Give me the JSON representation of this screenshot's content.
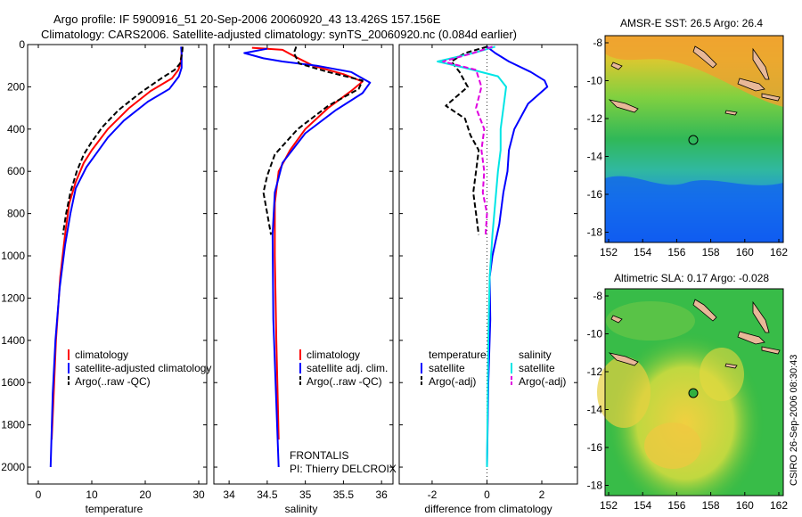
{
  "header": {
    "line1": "Argo profile: IF 5900916_51 20-Sep-2006 20060920_43 13.426S 157.156E",
    "line2": "Climatology: CARS2006. Satellite-adjusted climatology: synTS_20060920.nc (0.084d earlier)"
  },
  "colors": {
    "climatology": "#ff0000",
    "satellite": "#0000ff",
    "argo": "#000000",
    "sat_salinity": "#00e5e5",
    "argo_salinity": "#e000e0"
  },
  "chart_data": [
    {
      "type": "line",
      "id": "temperature",
      "xlabel": "temperature",
      "xlim": [
        -2,
        31.5
      ],
      "ylim": [
        0,
        2080
      ],
      "xticks": [
        0,
        10,
        20,
        30
      ],
      "yticks": [
        0,
        200,
        400,
        600,
        800,
        1000,
        1200,
        1400,
        1600,
        1800,
        2000
      ],
      "legend": [
        "climatology",
        "satellite-adjusted climatology",
        "Argo(..raw -QC)"
      ],
      "series": [
        {
          "name": "climatology",
          "color": "#ff0000",
          "points": [
            [
              26.8,
              10
            ],
            [
              26.8,
              40
            ],
            [
              26.6,
              90
            ],
            [
              26.2,
              120
            ],
            [
              25,
              160
            ],
            [
              21,
              220
            ],
            [
              17,
              300
            ],
            [
              13,
              400
            ],
            [
              10,
              500
            ],
            [
              8.5,
              560
            ],
            [
              7,
              650
            ],
            [
              5.8,
              750
            ],
            [
              5,
              900
            ],
            [
              4.1,
              1100
            ],
            [
              3.3,
              1400
            ],
            [
              2.8,
              1700
            ],
            [
              2.5,
              1870
            ]
          ]
        },
        {
          "name": "satellite-adjusted climatology",
          "color": "#0000ff",
          "points": [
            [
              26.7,
              10
            ],
            [
              26.8,
              40
            ],
            [
              26.8,
              110
            ],
            [
              26.3,
              150
            ],
            [
              24.5,
              210
            ],
            [
              20.5,
              270
            ],
            [
              16,
              360
            ],
            [
              13,
              440
            ],
            [
              11,
              510
            ],
            [
              9,
              580
            ],
            [
              7,
              680
            ],
            [
              6,
              800
            ],
            [
              5,
              950
            ],
            [
              4,
              1150
            ],
            [
              3.2,
              1400
            ],
            [
              2.7,
              1650
            ],
            [
              2.3,
              2000
            ]
          ]
        },
        {
          "name": "Argo(..raw -QC)",
          "color": "#000000",
          "dash": true,
          "points": [
            [
              27,
              10
            ],
            [
              26.9,
              40
            ],
            [
              26.5,
              90
            ],
            [
              25.5,
              120
            ],
            [
              23,
              160
            ],
            [
              19,
              230
            ],
            [
              15,
              310
            ],
            [
              12,
              390
            ],
            [
              10,
              460
            ],
            [
              8.5,
              520
            ],
            [
              7.2,
              600
            ],
            [
              6,
              700
            ],
            [
              5.2,
              800
            ],
            [
              4.6,
              900
            ]
          ]
        }
      ]
    },
    {
      "type": "line",
      "id": "salinity",
      "xlabel": "salinity",
      "xlim": [
        33.8,
        36.15
      ],
      "ylim": [
        0,
        2080
      ],
      "xticks": [
        34,
        34.5,
        35,
        35.5,
        36
      ],
      "legend": [
        "climatology",
        "satellite adj. clim.",
        "Argo(..raw -QC)"
      ],
      "annotation1": "FRONTALIS",
      "annotation2": "PI: Thierry DELCROIX",
      "series": [
        {
          "name": "climatology",
          "color": "#ff0000",
          "points": [
            [
              34.3,
              15
            ],
            [
              34.7,
              25
            ],
            [
              34.88,
              60
            ],
            [
              35.1,
              100
            ],
            [
              35.5,
              140
            ],
            [
              35.75,
              175
            ],
            [
              35.6,
              220
            ],
            [
              35.3,
              300
            ],
            [
              35.0,
              400
            ],
            [
              34.8,
              500
            ],
            [
              34.65,
              600
            ],
            [
              34.6,
              750
            ],
            [
              34.6,
              1000
            ],
            [
              34.62,
              1400
            ],
            [
              34.64,
              1700
            ],
            [
              34.65,
              1870
            ]
          ]
        },
        {
          "name": "satellite adj. clim.",
          "color": "#0000ff",
          "points": [
            [
              34.5,
              20
            ],
            [
              34.2,
              40
            ],
            [
              34.45,
              65
            ],
            [
              34.7,
              80
            ],
            [
              35.15,
              100
            ],
            [
              35.6,
              130
            ],
            [
              35.85,
              180
            ],
            [
              35.75,
              230
            ],
            [
              35.4,
              310
            ],
            [
              35.0,
              420
            ],
            [
              34.7,
              560
            ],
            [
              34.6,
              700
            ],
            [
              34.57,
              900
            ],
            [
              34.58,
              1300
            ],
            [
              34.62,
              1700
            ],
            [
              34.65,
              2000
            ]
          ]
        },
        {
          "name": "Argo(..raw -QC)",
          "color": "#000000",
          "dash": true,
          "points": [
            [
              34.88,
              10
            ],
            [
              34.85,
              40
            ],
            [
              34.92,
              90
            ],
            [
              35.3,
              130
            ],
            [
              35.75,
              170
            ],
            [
              35.7,
              210
            ],
            [
              35.3,
              290
            ],
            [
              34.9,
              400
            ],
            [
              34.6,
              520
            ],
            [
              34.5,
              620
            ],
            [
              34.45,
              700
            ],
            [
              34.5,
              800
            ],
            [
              34.55,
              900
            ]
          ]
        }
      ]
    },
    {
      "type": "line",
      "id": "difference",
      "xlabel": "difference from climatology",
      "xlim": [
        -3.2,
        3.3
      ],
      "ylim": [
        0,
        2080
      ],
      "xticks": [
        -2,
        0,
        2
      ],
      "legend_headers": [
        "temperature",
        "salinity"
      ],
      "legend": [
        "satellite",
        "Argo(-adj)",
        "satellite",
        "Argo(-adj)"
      ],
      "series": [
        {
          "name": "temperature satellite",
          "color": "#0000ff",
          "points": [
            [
              0,
              10
            ],
            [
              0.3,
              40
            ],
            [
              0.8,
              80
            ],
            [
              1.6,
              130
            ],
            [
              2.1,
              170
            ],
            [
              2.2,
              200
            ],
            [
              1.5,
              280
            ],
            [
              1.0,
              400
            ],
            [
              0.8,
              500
            ],
            [
              0.75,
              600
            ],
            [
              0.6,
              700
            ],
            [
              0.45,
              850
            ],
            [
              0.2,
              1000
            ],
            [
              0.1,
              1100
            ],
            [
              0.12,
              1300
            ],
            [
              0.05,
              1600
            ],
            [
              0,
              2000
            ]
          ]
        },
        {
          "name": "temperature Argo(-adj)",
          "color": "#000000",
          "dash": true,
          "points": [
            [
              0,
              10
            ],
            [
              -0.8,
              40
            ],
            [
              -1.3,
              80
            ],
            [
              -1.0,
              130
            ],
            [
              -0.7,
              200
            ],
            [
              -1.5,
              290
            ],
            [
              -0.8,
              350
            ],
            [
              -0.6,
              430
            ],
            [
              -0.3,
              500
            ],
            [
              -0.4,
              600
            ],
            [
              -0.5,
              700
            ],
            [
              -0.4,
              800
            ],
            [
              -0.3,
              900
            ]
          ]
        },
        {
          "name": "salinity satellite",
          "color": "#00e5e5",
          "points": [
            [
              0.3,
              10
            ],
            [
              -0.5,
              40
            ],
            [
              -1.8,
              80
            ],
            [
              -0.8,
              110
            ],
            [
              0.4,
              150
            ],
            [
              0.7,
              200
            ],
            [
              0.6,
              300
            ],
            [
              0.5,
              400
            ],
            [
              0.5,
              500
            ],
            [
              0.4,
              600
            ],
            [
              0.3,
              750
            ],
            [
              0.2,
              900
            ],
            [
              0.1,
              1100
            ],
            [
              0.05,
              1400
            ],
            [
              0,
              2000
            ]
          ]
        },
        {
          "name": "salinity Argo(-adj)",
          "color": "#e000e0",
          "dash": true,
          "points": [
            [
              0.2,
              10
            ],
            [
              -0.5,
              40
            ],
            [
              -1.6,
              80
            ],
            [
              -0.4,
              120
            ],
            [
              -0.2,
              200
            ],
            [
              -0.4,
              300
            ],
            [
              -0.1,
              400
            ],
            [
              -0.2,
              500
            ],
            [
              -0.1,
              600
            ],
            [
              -0.15,
              700
            ],
            [
              0,
              800
            ],
            [
              -0.05,
              900
            ]
          ]
        }
      ]
    }
  ],
  "map_sst": {
    "title": "AMSR-E SST: 26.5 Argo: 26.4",
    "xticks": [
      "152",
      "154",
      "156",
      "158",
      "160",
      "162"
    ],
    "yticks": [
      "-8",
      "-10",
      "-12",
      "-14",
      "-16",
      "-18"
    ],
    "argo_lon": 157.156,
    "argo_lat": -13.426
  },
  "map_sla": {
    "title": "Altimetric SLA: 0.17 Argo: -0.028",
    "xticks": [
      "152",
      "154",
      "156",
      "158",
      "160",
      "162"
    ],
    "yticks": [
      "-8",
      "-10",
      "-12",
      "-14",
      "-16",
      "-18"
    ],
    "argo_lon": 157.156,
    "argo_lat": -13.426
  },
  "footer": {
    "credit": "CSIRO 26-Sep-2006 08:30:43"
  }
}
